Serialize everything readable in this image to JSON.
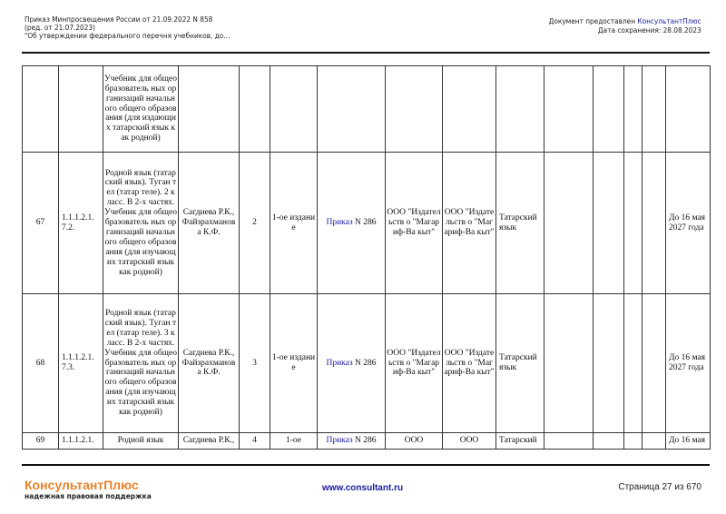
{
  "header": {
    "left": [
      "Приказ Минпросвещения России от 21.09.2022 N 858",
      "(ред. от 21.07.2023)",
      "\"Об утверждении федерального перечня учебников, до..."
    ],
    "provided_prefix": "Документ предоставлен ",
    "provided_brand": "КонсультантПлюс",
    "saved": "Дата сохранения: 28.08.2023"
  },
  "rows": [
    {
      "num": "",
      "code": "",
      "title": "Учебник для общеобразователь ных организаций начального общего образования (для издающих татарский язык как родной)",
      "authors": "",
      "grade": "",
      "edition": "",
      "order_link": "",
      "order_num": "",
      "pub1": "",
      "pub2": "",
      "lang": "",
      "date": ""
    },
    {
      "num": "67",
      "code": "1.1.1.2.1. 7.2.",
      "title": "Родной язык (татарский язык). Туган тел (татар теле). 2 класс. В 2-х частях. Учебник для общеобразователь ных организаций начального общего образования (для изучающих татарский язык как родной)",
      "authors": "Сагдиева Р.К., Файзрахманов а К.Ф.",
      "grade": "2",
      "edition": "1-ое издание",
      "order_link": "Приказ",
      "order_num": " N 286",
      "pub1": "ООО \"Издательств о \"Магариф-Ва кыт\"",
      "pub2": "ООО \"Издательств о \"Магариф-Ва кыт\"",
      "lang": "Татарский язык",
      "date": "До 16 мая 2027 года"
    },
    {
      "num": "68",
      "code": "1.1.1.2.1. 7.3.",
      "title": "Родной язык (татарский язык). Туган тел (татар теле). 3 класс. В 2-х частях. Учебник для общеобразователь ных организаций начального общего образования (для изучающих татарский язык как родной)",
      "authors": "Сагдиева Р.К., Файзрахманов а К.Ф.",
      "grade": "3",
      "edition": "1-ое издание",
      "order_link": "Приказ",
      "order_num": " N 286",
      "pub1": "ООО \"Издательств о \"Магариф-Ва кыт\"",
      "pub2": "ООО \"Издательств о \"Магариф-Ва кыт\"",
      "lang": "Татарский язык",
      "date": "До 16 мая 2027 года"
    },
    {
      "num": "69",
      "code": "1.1.1.2.1.",
      "title": "Родной язык",
      "authors": "Сагдиева Р.К.,",
      "grade": "4",
      "edition": "1-ое",
      "order_link": "Приказ",
      "order_num": " N 286",
      "pub1": "ООО",
      "pub2": "ООО",
      "lang": "Татарский",
      "date": "До 16 мая"
    }
  ],
  "footer": {
    "brand": "КонсультантПлюс",
    "tagline": "надежная правовая поддержка",
    "url": "www.consultant.ru",
    "page": "Страница 27 из 670"
  },
  "colors": {
    "brand": "#e8822a",
    "link": "#1a1aa6"
  }
}
